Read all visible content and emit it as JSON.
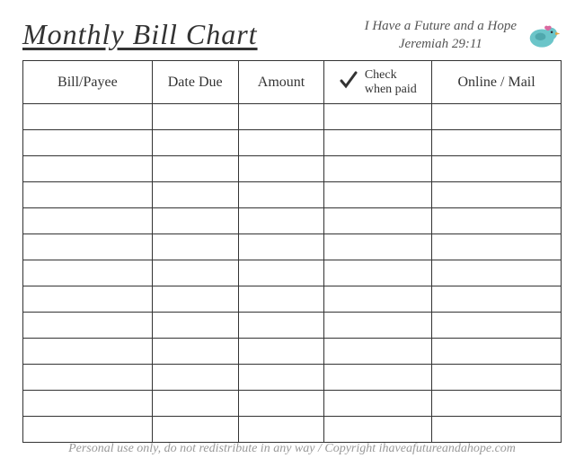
{
  "title": "Monthly Bill Chart",
  "verse": {
    "line1": "I Have a Future and a Hope",
    "line2": "Jeremiah 29:11"
  },
  "bird": {
    "body_color": "#6bc5c9",
    "beak_color": "#e8a23d",
    "wing_color": "#4fa8ad",
    "eye_color": "#333333",
    "flower_color": "#d969a0"
  },
  "table": {
    "columns": [
      {
        "label": "Bill/Payee",
        "class": "col-bill"
      },
      {
        "label": "Date Due",
        "class": "col-date"
      },
      {
        "label": "Amount",
        "class": "col-amount"
      },
      {
        "label_line1": "Check",
        "label_line2": "when paid",
        "class": "col-check",
        "has_checkmark": true
      },
      {
        "label": "Online / Mail",
        "class": "col-online"
      }
    ],
    "row_count": 13,
    "border_color": "#333333"
  },
  "footer": "Personal use only, do not redistribute in any way / Copyright ihaveafutureandahope.com",
  "checkmark_color": "#333333"
}
